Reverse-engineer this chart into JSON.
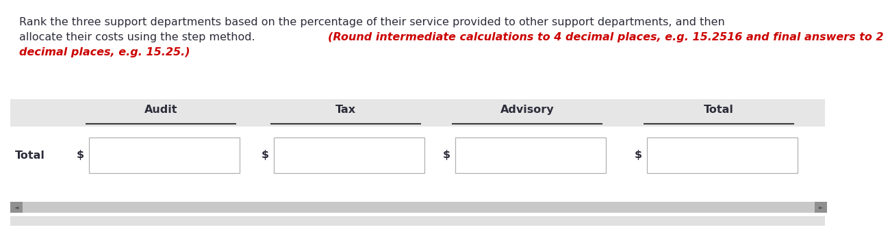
{
  "line1_black": "Rank the three support departments based on the percentage of their service provided to other support departments, and then",
  "line2_black": "allocate their costs using the step method. ",
  "line2_red": "(Round intermediate calculations to 4 decimal places, e.g. 15.2516 and final answers to 2",
  "line3_red": "decimal places, e.g. 15.25.)",
  "columns": [
    "Audit",
    "Tax",
    "Advisory",
    "Total"
  ],
  "row_label": "Total",
  "dollar_sign": "$",
  "header_bg": "#e6e6e6",
  "input_box_bg": "#ffffff",
  "input_box_border": "#b0b0b0",
  "scrollbar_bg": "#c8c8c8",
  "scrollbar_arrow_bg": "#909090",
  "bottom_bar_bg": "#e0e0e0",
  "text_color_dark": "#2c2c3a",
  "text_color_red": "#cc0000",
  "font_size_title": 11.5,
  "font_size_header": 11.5,
  "font_size_row": 11.5
}
